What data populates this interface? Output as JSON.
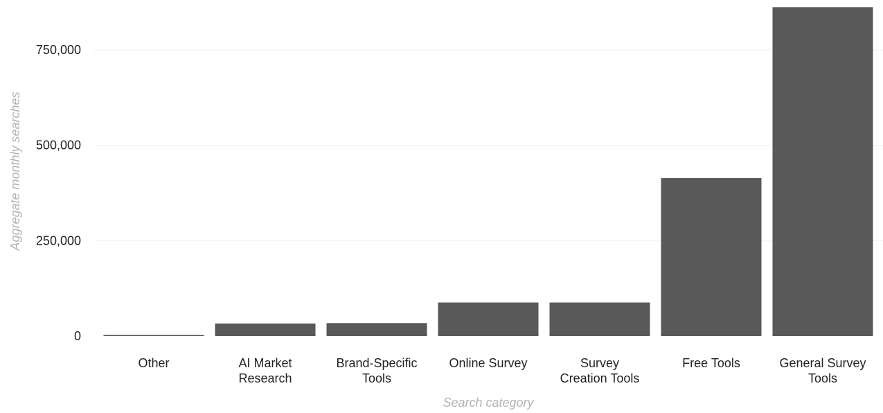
{
  "chart_data": {
    "type": "bar",
    "title": "",
    "xlabel": "Search category",
    "ylabel": "Aggregate monthly searches",
    "categories": [
      [
        "Other"
      ],
      [
        "AI Market",
        "Research"
      ],
      [
        "Brand-Specific",
        "Tools"
      ],
      [
        "Online Survey"
      ],
      [
        "Survey",
        "Creation Tools"
      ],
      [
        "Free Tools"
      ],
      [
        "General Survey",
        "Tools"
      ]
    ],
    "values": [
      3000,
      33000,
      34000,
      88000,
      88000,
      414000,
      862000
    ],
    "ylim": [
      0,
      862000
    ],
    "yticks": [
      0,
      250000,
      500000,
      750000
    ],
    "ytick_labels": [
      "0",
      "250,000",
      "500,000",
      "750,000"
    ],
    "grid": "horizontal",
    "colors": {
      "bar": "#595959",
      "grid": "#f0f0f0",
      "text": "#222222",
      "axis_title": "#b3b3b3"
    }
  }
}
